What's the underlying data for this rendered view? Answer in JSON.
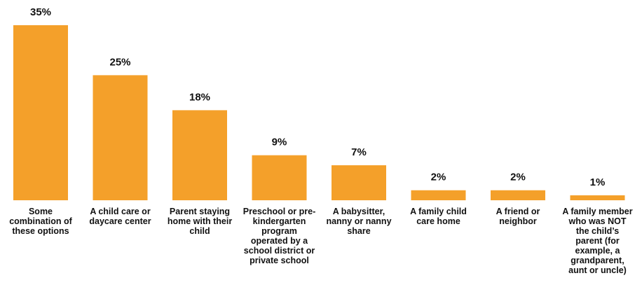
{
  "chart_data": {
    "type": "bar",
    "title": "",
    "xlabel": "",
    "ylabel": "",
    "ylim": [
      0,
      35
    ],
    "grid": false,
    "legend": "none",
    "bar_color": "#F4A02A",
    "categories": [
      "Some combination of these options",
      "A child care or daycare center",
      "Parent staying home with their child",
      "Preschool or pre-kindergarten program operated by a school district or private school",
      "A babysitter, nanny or nanny share",
      "A family child care home",
      "A friend or neighbor",
      "A family member who was NOT the child’s parent (for example, a grandparent, aunt or uncle)"
    ],
    "category_lines": [
      [
        "Some",
        "combination of",
        "these options"
      ],
      [
        "A child care or",
        "daycare center"
      ],
      [
        "Parent staying",
        "home with their",
        "child"
      ],
      [
        "Preschool or pre-",
        "kindergarten",
        "program",
        "operated by a",
        "school district or",
        "private school"
      ],
      [
        "A babysitter,",
        "nanny or nanny",
        "share"
      ],
      [
        "A family child",
        "care home"
      ],
      [
        "A friend or",
        "neighbor"
      ],
      [
        "A family member",
        "who was NOT",
        "the child’s",
        "parent (for",
        "example, a",
        "grandparent,",
        "aunt or uncle)"
      ]
    ],
    "values": [
      35,
      25,
      18,
      9,
      7,
      2,
      2,
      1
    ],
    "data_labels": [
      "35%",
      "25%",
      "18%",
      "9%",
      "7%",
      "2%",
      "2%",
      "1%"
    ]
  }
}
